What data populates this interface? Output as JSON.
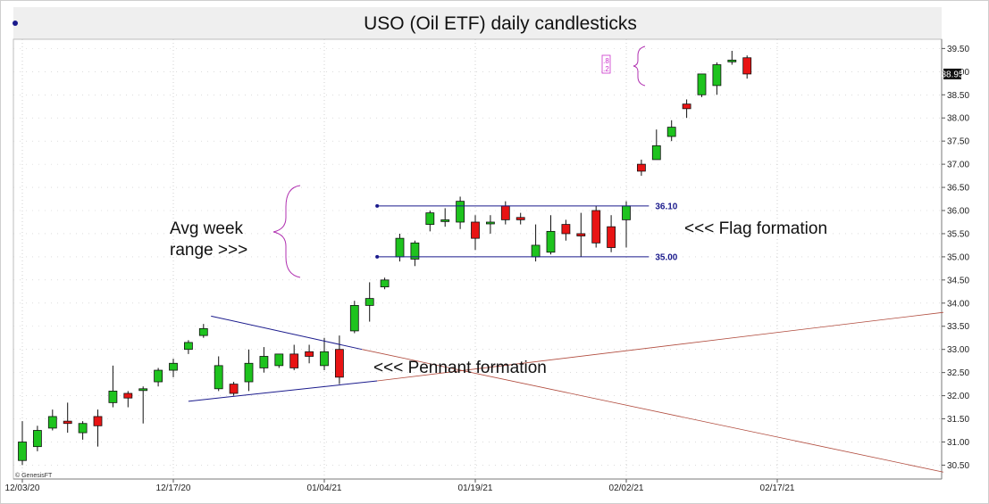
{
  "chart_data": {
    "type": "candlestick",
    "title": "USO (Oil ETF) daily candlesticks",
    "ylim": [
      30.2,
      39.7
    ],
    "y_ticks": [
      "39.50",
      "39.00",
      "38.50",
      "38.00",
      "37.50",
      "37.00",
      "36.50",
      "36.00",
      "35.50",
      "35.00",
      "34.50",
      "34.00",
      "33.50",
      "33.00",
      "32.50",
      "32.00",
      "31.50",
      "31.00",
      "30.50"
    ],
    "x_ticks": [
      {
        "label": "12/03/20",
        "index": 0
      },
      {
        "label": "12/17/20",
        "index": 10
      },
      {
        "label": "01/04/21",
        "index": 20
      },
      {
        "label": "01/19/21",
        "index": 30
      },
      {
        "label": "02/02/21",
        "index": 40
      },
      {
        "label": "02/17/21",
        "index": 50
      }
    ],
    "candles": [
      {
        "open": 30.6,
        "high": 31.45,
        "low": 30.5,
        "close": 31.0
      },
      {
        "open": 30.9,
        "high": 31.35,
        "low": 30.8,
        "close": 31.25
      },
      {
        "open": 31.3,
        "high": 31.7,
        "low": 31.25,
        "close": 31.55
      },
      {
        "open": 31.45,
        "high": 31.85,
        "low": 31.2,
        "close": 31.4
      },
      {
        "open": 31.2,
        "high": 31.45,
        "low": 31.05,
        "close": 31.4
      },
      {
        "open": 31.55,
        "high": 31.7,
        "low": 30.9,
        "close": 31.35
      },
      {
        "open": 31.85,
        "high": 32.65,
        "low": 31.75,
        "close": 32.1
      },
      {
        "open": 32.05,
        "high": 32.1,
        "low": 31.75,
        "close": 31.95
      },
      {
        "open": 32.15,
        "high": 32.2,
        "low": 31.4,
        "close": 32.15
      },
      {
        "open": 32.3,
        "high": 32.6,
        "low": 32.2,
        "close": 32.55
      },
      {
        "open": 32.55,
        "high": 32.8,
        "low": 32.4,
        "close": 32.7
      },
      {
        "open": 33.0,
        "high": 33.2,
        "low": 32.9,
        "close": 33.15
      },
      {
        "open": 33.3,
        "high": 33.55,
        "low": 33.25,
        "close": 33.45
      },
      {
        "open": 32.15,
        "high": 32.85,
        "low": 32.1,
        "close": 32.65
      },
      {
        "open": 32.25,
        "high": 32.3,
        "low": 32.0,
        "close": 32.05
      },
      {
        "open": 32.3,
        "high": 33.0,
        "low": 32.1,
        "close": 32.7
      },
      {
        "open": 32.6,
        "high": 33.05,
        "low": 32.5,
        "close": 32.85
      },
      {
        "open": 32.65,
        "high": 32.9,
        "low": 32.6,
        "close": 32.9
      },
      {
        "open": 32.9,
        "high": 33.1,
        "low": 32.55,
        "close": 32.6
      },
      {
        "open": 32.95,
        "high": 33.1,
        "low": 32.7,
        "close": 32.85
      },
      {
        "open": 32.65,
        "high": 33.25,
        "low": 32.55,
        "close": 32.95
      },
      {
        "open": 33.0,
        "high": 33.3,
        "low": 32.25,
        "close": 32.4
      },
      {
        "open": 33.4,
        "high": 34.05,
        "low": 33.35,
        "close": 33.95
      },
      {
        "open": 33.95,
        "high": 34.45,
        "low": 33.6,
        "close": 34.1
      },
      {
        "open": 34.35,
        "high": 34.55,
        "low": 34.3,
        "close": 34.5
      },
      {
        "open": 35.0,
        "high": 35.5,
        "low": 34.9,
        "close": 35.4
      },
      {
        "open": 34.95,
        "high": 35.35,
        "low": 34.8,
        "close": 35.3
      },
      {
        "open": 35.7,
        "high": 36.0,
        "low": 35.55,
        "close": 35.95
      },
      {
        "open": 35.8,
        "high": 36.05,
        "low": 35.65,
        "close": 35.8
      },
      {
        "open": 35.75,
        "high": 36.3,
        "low": 35.6,
        "close": 36.2
      },
      {
        "open": 35.75,
        "high": 35.9,
        "low": 35.15,
        "close": 35.4
      },
      {
        "open": 35.75,
        "high": 35.9,
        "low": 35.5,
        "close": 35.75
      },
      {
        "open": 36.1,
        "high": 36.2,
        "low": 35.7,
        "close": 35.8
      },
      {
        "open": 35.85,
        "high": 35.95,
        "low": 35.7,
        "close": 35.8
      },
      {
        "open": 35.0,
        "high": 35.7,
        "low": 34.9,
        "close": 35.25
      },
      {
        "open": 35.1,
        "high": 35.9,
        "low": 35.05,
        "close": 35.55
      },
      {
        "open": 35.7,
        "high": 35.8,
        "low": 35.35,
        "close": 35.5
      },
      {
        "open": 35.5,
        "high": 35.95,
        "low": 35.0,
        "close": 35.45
      },
      {
        "open": 36.0,
        "high": 36.1,
        "low": 35.2,
        "close": 35.3
      },
      {
        "open": 35.65,
        "high": 35.9,
        "low": 35.1,
        "close": 35.2
      },
      {
        "open": 35.8,
        "high": 36.2,
        "low": 35.2,
        "close": 36.1
      },
      {
        "open": 37.0,
        "high": 37.1,
        "low": 36.75,
        "close": 36.85
      },
      {
        "open": 37.1,
        "high": 37.75,
        "low": 37.1,
        "close": 37.4
      },
      {
        "open": 37.6,
        "high": 37.95,
        "low": 37.5,
        "close": 37.8
      },
      {
        "open": 38.3,
        "high": 38.4,
        "low": 38.0,
        "close": 38.2
      },
      {
        "open": 38.5,
        "high": 38.95,
        "low": 38.45,
        "close": 38.95
      },
      {
        "open": 38.7,
        "high": 39.2,
        "low": 38.5,
        "close": 39.15
      },
      {
        "open": 39.25,
        "high": 39.45,
        "low": 39.15,
        "close": 39.25
      },
      {
        "open": 39.3,
        "high": 39.35,
        "low": 38.85,
        "close": 38.95
      }
    ],
    "flag_levels": [
      {
        "label": "36.10",
        "value": 36.1
      },
      {
        "label": "35.00",
        "value": 35.0
      }
    ],
    "last_price": "38.95",
    "annotations": {
      "avg_week_line1": "Avg week",
      "avg_week_line2": "range >>>",
      "flag": "<<< Flag formation",
      "pennant": "<<< Pennant formation"
    },
    "fib_labels": [
      ".8",
      ".2"
    ],
    "credit": "© GenesisFT",
    "colors": {
      "up": "#1ec31e",
      "down": "#e81414",
      "trend": "#1a1a8c",
      "extension": "#b04a3c",
      "brace": "#b030b0"
    },
    "grid": true
  }
}
